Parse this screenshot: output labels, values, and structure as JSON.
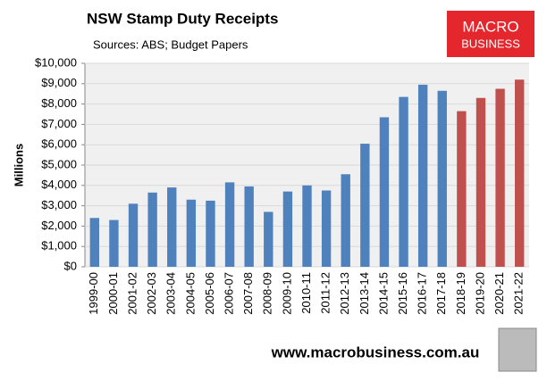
{
  "chart_data": {
    "type": "bar",
    "title": "NSW Stamp Duty Receipts",
    "subtitle": "Sources: ABS; Budget Papers",
    "y_label": "Millions",
    "logo": {
      "line1": "MACRO",
      "line2": "BUSINESS"
    },
    "footer": "www.macrobusiness.com.au",
    "categories": [
      "1999-00",
      "2000-01",
      "2001-02",
      "2002-03",
      "2003-04",
      "2004-05",
      "2005-06",
      "2006-07",
      "2007-08",
      "2008-09",
      "2009-10",
      "2010-11",
      "2011-12",
      "2012-13",
      "2013-14",
      "2014-15",
      "2015-16",
      "2016-17",
      "2017-18",
      "2018-19",
      "2019-20",
      "2020-21",
      "2021-22"
    ],
    "values": [
      2400,
      2300,
      3100,
      3650,
      3900,
      3300,
      3250,
      4150,
      3950,
      2700,
      3700,
      4000,
      3750,
      4550,
      6050,
      7350,
      8350,
      8950,
      8650,
      7650,
      8300,
      8750,
      9200
    ],
    "colors": [
      "#4f81bd",
      "#4f81bd",
      "#4f81bd",
      "#4f81bd",
      "#4f81bd",
      "#4f81bd",
      "#4f81bd",
      "#4f81bd",
      "#4f81bd",
      "#4f81bd",
      "#4f81bd",
      "#4f81bd",
      "#4f81bd",
      "#4f81bd",
      "#4f81bd",
      "#4f81bd",
      "#4f81bd",
      "#4f81bd",
      "#4f81bd",
      "#c0504d",
      "#c0504d",
      "#c0504d",
      "#c0504d"
    ],
    "ylim": [
      0,
      10000
    ],
    "yticks": [
      {
        "value": 0,
        "label": "$0"
      },
      {
        "value": 1000,
        "label": "$1,000"
      },
      {
        "value": 2000,
        "label": "$2,000"
      },
      {
        "value": 3000,
        "label": "$3,000"
      },
      {
        "value": 4000,
        "label": "$4,000"
      },
      {
        "value": 5000,
        "label": "$5,000"
      },
      {
        "value": 6000,
        "label": "$6,000"
      },
      {
        "value": 7000,
        "label": "$7,000"
      },
      {
        "value": 8000,
        "label": "$8,000"
      },
      {
        "value": 9000,
        "label": "$9,000"
      },
      {
        "value": 10000,
        "label": "$10,000"
      }
    ],
    "grid": true
  }
}
